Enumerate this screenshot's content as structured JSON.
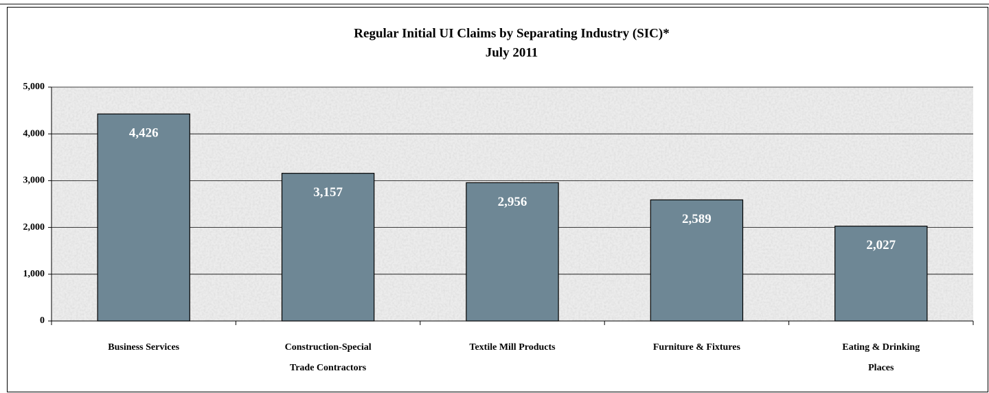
{
  "chart_data": {
    "type": "bar",
    "title": "Regular Initial UI Claims by Separating Industry (SIC)*",
    "subtitle": "July 2011",
    "categories": [
      [
        "Business Services"
      ],
      [
        "Construction-Special",
        "Trade Contractors"
      ],
      [
        "Textile Mill Products"
      ],
      [
        "Furniture & Fixtures"
      ],
      [
        "Eating & Drinking",
        "Places"
      ]
    ],
    "values": [
      4426,
      3157,
      2956,
      2589,
      2027
    ],
    "value_labels": [
      "4,426",
      "3,157",
      "2,956",
      "2,589",
      "2,027"
    ],
    "color": "#6e8795",
    "ylim": [
      0,
      5000
    ],
    "yticks": [
      0,
      {
        "value": 1000,
        "label": "1,000"
      },
      {
        "value": 2000,
        "label": "2,000"
      },
      {
        "value": 3000,
        "label": "3,000"
      },
      {
        "value": 4000,
        "label": "4,000"
      },
      {
        "value": 5000,
        "label": "5,000"
      }
    ],
    "grid": true
  }
}
